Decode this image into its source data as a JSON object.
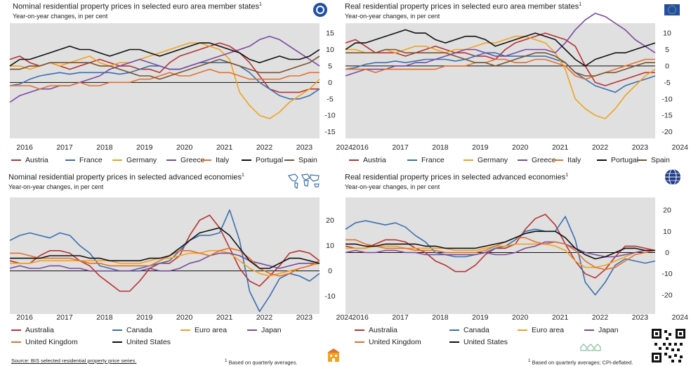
{
  "panels": [
    {
      "title": "Nominal residential property prices in selected euro area member states",
      "title_sup": "1",
      "subtitle": "Year-on-year changes, in per cent",
      "icon": "ecb-logo-icon"
    },
    {
      "title": "Real residential property prices in selected euro area member states",
      "title_sup": "1",
      "subtitle": "Year-on-year changes, in per cent",
      "icon": "eu-flag-icon"
    },
    {
      "title": "Nominal residential property prices in selected advanced economies",
      "title_sup": "1",
      "subtitle": "Year-on-year changes, in per cent",
      "icon": "world-map-icon"
    },
    {
      "title": "Real residential property prices in selected advanced economies",
      "title_sup": "1",
      "subtitle": "Year-on-year changes, in per cent",
      "icon": "globe-icon"
    }
  ],
  "footer": {
    "source": "Source: BIS selected residential property price series.",
    "note_left": "Based on quarterly averages.",
    "note_left_sup": "1",
    "note_right": "Based on quarterly averages; CPI-deflated.",
    "note_right_sup": "1",
    "icons": [
      "building-icon",
      "houses-icon",
      "qr-code-icon"
    ]
  },
  "chart_data": [
    {
      "type": "line",
      "x_ticks": [
        "2016",
        "2017",
        "2018",
        "2019",
        "2020",
        "2021",
        "2022",
        "2023",
        "2024"
      ],
      "ylim": [
        -17,
        18
      ],
      "y_ticks": [
        15,
        10,
        5,
        0,
        -5,
        -10,
        -15
      ],
      "grid": false,
      "legend_position": "bottom",
      "series": [
        {
          "name": "Austria",
          "color": "#b83232",
          "values": [
            7,
            8,
            6,
            5,
            6,
            5,
            4,
            5,
            6,
            7,
            6,
            5,
            5,
            4,
            4,
            3,
            6,
            8,
            9,
            10,
            11,
            12,
            11,
            9,
            6,
            2,
            -2,
            -3,
            -3,
            -3,
            -2,
            -2
          ]
        },
        {
          "name": "France",
          "color": "#3a6fb0",
          "values": [
            -1,
            -0.5,
            1,
            2,
            2.5,
            3,
            2.5,
            3,
            3,
            3,
            3,
            2.5,
            3,
            4,
            5,
            5,
            4,
            4,
            5,
            6,
            6,
            6,
            6,
            5,
            3,
            0,
            -2,
            -4,
            -5,
            -5,
            -4,
            -2
          ]
        },
        {
          "name": "Germany",
          "color": "#f0a21e",
          "values": [
            5,
            5,
            4,
            5,
            6,
            5,
            6,
            7,
            8,
            6,
            5,
            6,
            6,
            7,
            8,
            9,
            10,
            11,
            12,
            12,
            11,
            10,
            7,
            -3,
            -7,
            -10,
            -11,
            -9,
            -6,
            -4,
            -2,
            1
          ]
        },
        {
          "name": "Greece",
          "color": "#7a4a9e",
          "values": [
            -6,
            -4,
            -3,
            -2,
            -2,
            -1,
            -1,
            0,
            1,
            2,
            4,
            5,
            6,
            7,
            6,
            5,
            4,
            4,
            5,
            6,
            7,
            8,
            9,
            10,
            11,
            13,
            14,
            13,
            11,
            9,
            7,
            5
          ]
        },
        {
          "name": "Italy",
          "color": "#e2702e",
          "values": [
            -1,
            -1,
            -1,
            -2,
            -1,
            -1,
            -1,
            0,
            -1,
            -1,
            0,
            0,
            0,
            1,
            1,
            2,
            3,
            2,
            2,
            3,
            4,
            3,
            3,
            2,
            1,
            1,
            1,
            1,
            2,
            2,
            3,
            3
          ]
        },
        {
          "name": "Portugal",
          "color": "#111111",
          "values": [
            5,
            7,
            7,
            8,
            9,
            10,
            11,
            10,
            10,
            9,
            8,
            9,
            10,
            10,
            9,
            8,
            9,
            10,
            11,
            12,
            12,
            11,
            10,
            9,
            7,
            6,
            7,
            8,
            7,
            7,
            8,
            10
          ]
        },
        {
          "name": "Spain",
          "color": "#7a5230",
          "values": [
            4,
            4,
            5,
            5,
            6,
            6,
            6,
            6,
            6,
            5,
            5,
            4,
            3,
            2,
            2,
            1,
            2,
            3,
            4,
            5,
            6,
            7,
            6,
            5,
            4,
            3,
            3,
            3,
            4,
            5,
            6,
            8
          ]
        }
      ]
    },
    {
      "type": "line",
      "x_ticks": [
        "2016",
        "2017",
        "2018",
        "2019",
        "2020",
        "2021",
        "2022",
        "2023",
        "2024"
      ],
      "ylim": [
        -22,
        13
      ],
      "y_ticks": [
        10,
        5,
        0,
        -5,
        -10,
        -15,
        -20
      ],
      "grid": false,
      "legend_position": "bottom",
      "series": [
        {
          "name": "Austria",
          "color": "#b83232",
          "values": [
            7,
            8,
            6,
            4,
            4,
            4,
            3,
            4,
            5,
            6,
            5,
            4,
            4,
            3,
            3,
            2,
            5,
            7,
            8,
            9,
            10,
            9,
            8,
            6,
            0,
            -5,
            -6,
            -5,
            -4,
            -3,
            -2,
            -2
          ]
        },
        {
          "name": "France",
          "color": "#3a6fb0",
          "values": [
            -1,
            -0.5,
            0.5,
            1,
            1,
            1.5,
            1,
            1.5,
            2,
            2,
            2,
            1.5,
            2,
            3,
            4,
            4,
            3,
            3,
            3,
            3,
            3,
            2,
            1,
            -2,
            -4,
            -6,
            -7,
            -8,
            -6,
            -5,
            -4,
            -3
          ]
        },
        {
          "name": "Germany",
          "color": "#f0a21e",
          "values": [
            5,
            5,
            4,
            4,
            5,
            4,
            5,
            6,
            6,
            5,
            4,
            5,
            5,
            6,
            7,
            7,
            8,
            9,
            9,
            8,
            7,
            4,
            -1,
            -10,
            -13,
            -15,
            -16,
            -13,
            -9,
            -6,
            -3,
            -1
          ]
        },
        {
          "name": "Greece",
          "color": "#7a4a9e",
          "values": [
            -3,
            -2,
            -1,
            -1,
            -1,
            0,
            0,
            1,
            1,
            2,
            3,
            4,
            5,
            5,
            4,
            3,
            3,
            4,
            5,
            5,
            5,
            4,
            7,
            11,
            14,
            16,
            15,
            13,
            11,
            8,
            6,
            4
          ]
        },
        {
          "name": "Italy",
          "color": "#e2702e",
          "values": [
            -1,
            -1,
            -1,
            -2,
            -1,
            -1,
            -1,
            -1,
            -1,
            -1,
            0,
            0,
            0,
            1,
            1,
            2,
            2,
            1,
            1,
            2,
            2,
            1,
            0,
            -3,
            -4,
            -3,
            -2,
            -1,
            0,
            1,
            2,
            2
          ]
        },
        {
          "name": "Portugal",
          "color": "#111111",
          "values": [
            5,
            7,
            7,
            8,
            9,
            10,
            11,
            10,
            10,
            8,
            7,
            8,
            9,
            9,
            8,
            6,
            7,
            8,
            9,
            10,
            9,
            8,
            5,
            2,
            0,
            2,
            3,
            4,
            4,
            5,
            6,
            7
          ]
        },
        {
          "name": "Spain",
          "color": "#7a5230",
          "values": [
            4,
            4,
            4,
            4,
            5,
            5,
            4,
            4,
            4,
            4,
            4,
            3,
            2,
            1,
            1,
            0,
            1,
            2,
            3,
            4,
            4,
            3,
            1,
            -2,
            -3,
            -3,
            -2,
            -2,
            -1,
            0,
            1,
            1
          ]
        }
      ]
    },
    {
      "type": "line",
      "x_ticks": [
        "2016",
        "2017",
        "2018",
        "2019",
        "2020",
        "2021",
        "2022",
        "2023",
        "2024"
      ],
      "ylim": [
        -17,
        29
      ],
      "y_ticks": [
        20,
        10,
        0,
        -10
      ],
      "grid": false,
      "legend_position": "bottom",
      "series": [
        {
          "name": "Australia",
          "color": "#b83232",
          "values": [
            4,
            3,
            3,
            6,
            8,
            8,
            7,
            4,
            2,
            -2,
            -5,
            -8,
            -8,
            -4,
            1,
            3,
            3,
            6,
            14,
            20,
            22,
            17,
            9,
            1,
            -4,
            -6,
            -2,
            2,
            7,
            8,
            7,
            4
          ]
        },
        {
          "name": "Canada",
          "color": "#3a6fb0",
          "values": [
            12,
            14,
            15,
            14,
            13,
            15,
            14,
            10,
            7,
            2,
            1,
            0,
            0,
            1,
            2,
            3,
            4,
            8,
            12,
            14,
            14,
            15,
            24,
            12,
            -8,
            -16,
            -10,
            -3,
            -1,
            -2,
            -4,
            -1
          ]
        },
        {
          "name": "Euro area",
          "color": "#f0a21e",
          "values": [
            3,
            3,
            3,
            4,
            4,
            4,
            4,
            4,
            4,
            4,
            4,
            3,
            3,
            3,
            4,
            5,
            5,
            6,
            7,
            7,
            8,
            8,
            7,
            4,
            1,
            -1,
            -2,
            -1,
            0,
            1,
            2,
            3
          ]
        },
        {
          "name": "Japan",
          "color": "#7a4a9e",
          "values": [
            1,
            2,
            1,
            1,
            2,
            2,
            1,
            1,
            0,
            0,
            0,
            0,
            0,
            0,
            1,
            0,
            0,
            1,
            3,
            4,
            6,
            7,
            7,
            6,
            4,
            3,
            2,
            1,
            2,
            3,
            3,
            3
          ]
        },
        {
          "name": "United Kingdom",
          "color": "#e2702e",
          "values": [
            7,
            7,
            6,
            5,
            5,
            5,
            5,
            4,
            3,
            3,
            2,
            2,
            2,
            2,
            2,
            4,
            6,
            8,
            8,
            7,
            6,
            8,
            9,
            8,
            5,
            1,
            -1,
            -2,
            -1,
            1,
            2,
            4
          ]
        },
        {
          "name": "United States",
          "color": "#111111",
          "values": [
            5,
            5,
            5,
            5,
            6,
            6,
            6,
            6,
            5,
            5,
            4,
            4,
            4,
            4,
            5,
            5,
            6,
            9,
            12,
            15,
            16,
            17,
            14,
            9,
            4,
            1,
            1,
            3,
            5,
            5,
            4,
            3
          ]
        }
      ]
    },
    {
      "type": "line",
      "x_ticks": [
        "2016",
        "2017",
        "2018",
        "2019",
        "2020",
        "2021",
        "2022",
        "2023",
        "2024"
      ],
      "ylim": [
        -29,
        26
      ],
      "y_ticks": [
        20,
        10,
        0,
        -10,
        -20
      ],
      "grid": false,
      "legend_position": "bottom",
      "series": [
        {
          "name": "Australia",
          "color": "#b83232",
          "values": [
            3,
            2,
            2,
            4,
            6,
            6,
            5,
            2,
            0,
            -4,
            -6,
            -9,
            -9,
            -6,
            -1,
            2,
            2,
            4,
            11,
            16,
            18,
            13,
            4,
            -4,
            -10,
            -12,
            -8,
            -2,
            3,
            3,
            2,
            1
          ]
        },
        {
          "name": "Canada",
          "color": "#3a6fb0",
          "values": [
            11,
            14,
            15,
            14,
            13,
            14,
            12,
            8,
            5,
            0,
            -1,
            -2,
            -2,
            -1,
            0,
            2,
            3,
            6,
            10,
            11,
            10,
            10,
            17,
            6,
            -14,
            -20,
            -14,
            -6,
            -3,
            -4,
            -5,
            -4
          ]
        },
        {
          "name": "Euro area",
          "color": "#f0a21e",
          "values": [
            2,
            2,
            2,
            3,
            3,
            3,
            2,
            2,
            2,
            2,
            2,
            1,
            1,
            1,
            2,
            3,
            3,
            4,
            4,
            4,
            4,
            3,
            1,
            -4,
            -7,
            -7,
            -6,
            -4,
            -2,
            0,
            1,
            1
          ]
        },
        {
          "name": "Japan",
          "color": "#7a4a9e",
          "values": [
            0,
            1,
            0,
            0,
            1,
            1,
            0,
            0,
            -1,
            -1,
            -1,
            -1,
            -1,
            -1,
            0,
            -1,
            -1,
            0,
            2,
            3,
            5,
            5,
            4,
            2,
            0,
            -1,
            -2,
            -2,
            -1,
            0,
            1,
            1
          ]
        },
        {
          "name": "United Kingdom",
          "color": "#e2702e",
          "values": [
            6,
            6,
            4,
            3,
            2,
            2,
            2,
            1,
            1,
            1,
            0,
            0,
            0,
            0,
            1,
            3,
            5,
            7,
            7,
            5,
            4,
            5,
            4,
            1,
            -4,
            -7,
            -8,
            -7,
            -4,
            -1,
            0,
            1
          ]
        },
        {
          "name": "United States",
          "color": "#111111",
          "values": [
            4,
            4,
            3,
            3,
            4,
            4,
            4,
            4,
            3,
            3,
            2,
            2,
            2,
            2,
            3,
            4,
            5,
            7,
            9,
            10,
            10,
            10,
            7,
            2,
            -1,
            -3,
            -2,
            0,
            2,
            2,
            1,
            1
          ]
        }
      ]
    }
  ]
}
